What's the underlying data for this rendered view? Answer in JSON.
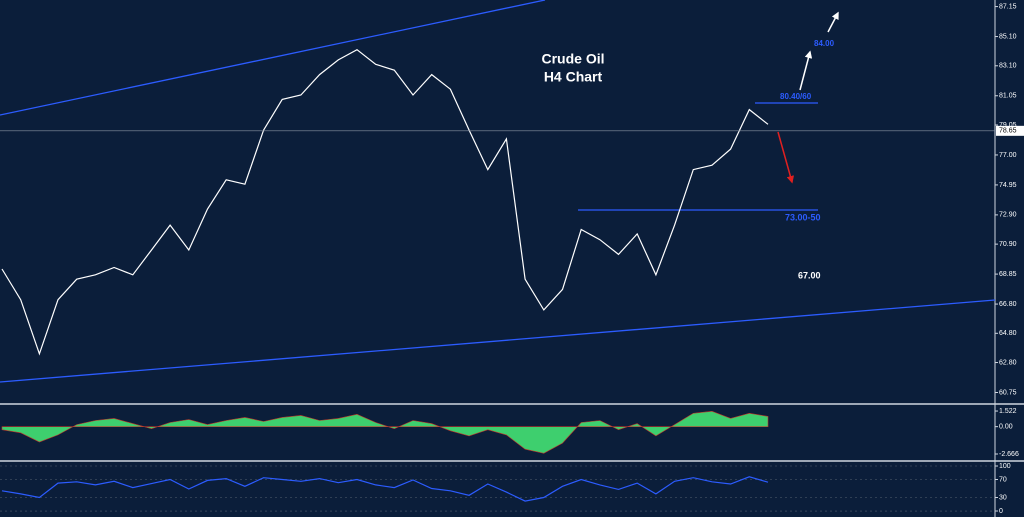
{
  "chart_data": [
    {
      "type": "line",
      "title": "Crude Oil",
      "subtitle": "H4 Chart",
      "color": "#ffffff",
      "values": [
        69.2,
        67.1,
        63.4,
        67.1,
        68.5,
        68.8,
        69.3,
        68.8,
        70.5,
        72.2,
        70.5,
        73.3,
        75.3,
        75.0,
        78.7,
        80.8,
        81.1,
        82.5,
        83.5,
        84.2,
        83.2,
        82.8,
        81.1,
        82.5,
        81.5,
        78.7,
        76.0,
        78.1,
        68.5,
        66.4,
        67.8,
        71.9,
        71.2,
        70.2,
        71.6,
        68.8,
        72.2,
        76.0,
        76.3,
        77.4,
        80.1,
        79.1
      ],
      "ylim": [
        60.1,
        87.6
      ],
      "yticks": [
        87.15,
        {
          "value": 85.1,
          "label": "85.10"
        },
        {
          "value": 83.1,
          "label": "83.10"
        },
        81.05,
        79.05,
        {
          "value": 77,
          "label": "77.00"
        },
        74.95,
        {
          "value": 72.9,
          "label": "72.90"
        },
        {
          "value": 70.9,
          "label": "70.90"
        },
        68.85,
        {
          "value": 66.8,
          "label": "66.80"
        },
        {
          "value": 64.8,
          "label": "64.80"
        },
        {
          "value": 62.8,
          "label": "62.80"
        },
        60.75
      ],
      "last_price": {
        "value": 78.65,
        "label": "78.65"
      },
      "annotations": [
        "84.00",
        "80.40/60",
        "73.00-50",
        "67.00"
      ]
    },
    {
      "type": "area",
      "color": "#3ecf6e",
      "values": [
        -0.3,
        -0.6,
        -1.5,
        -0.8,
        0.2,
        0.6,
        0.8,
        0.3,
        -0.2,
        0.4,
        0.7,
        0.2,
        0.6,
        0.9,
        0.5,
        0.9,
        1.1,
        0.6,
        0.8,
        1.2,
        0.4,
        -0.2,
        0.6,
        0.3,
        -0.4,
        -0.9,
        -0.3,
        -0.8,
        -2.2,
        -2.6,
        -1.6,
        0.4,
        0.6,
        -0.3,
        0.3,
        -0.9,
        0.2,
        1.3,
        1.5,
        0.8,
        1.3,
        1.0
      ],
      "ylim": [
        -3.25,
        2.11
      ],
      "yticks": [
        1.522,
        {
          "value": 0,
          "label": "0.00"
        },
        -2.666
      ]
    },
    {
      "type": "line",
      "color": "#2c5cff",
      "values": [
        45,
        38,
        30,
        62,
        65,
        58,
        66,
        52,
        61,
        70,
        49,
        68,
        72,
        55,
        74,
        70,
        66,
        72,
        63,
        70,
        58,
        52,
        69,
        50,
        45,
        35,
        60,
        42,
        22,
        30,
        55,
        70,
        58,
        48,
        62,
        38,
        66,
        74,
        65,
        60,
        76,
        64
      ],
      "ylim": [
        -13.3,
        108.9
      ],
      "yticks": [
        100,
        70,
        30,
        0
      ]
    }
  ]
}
